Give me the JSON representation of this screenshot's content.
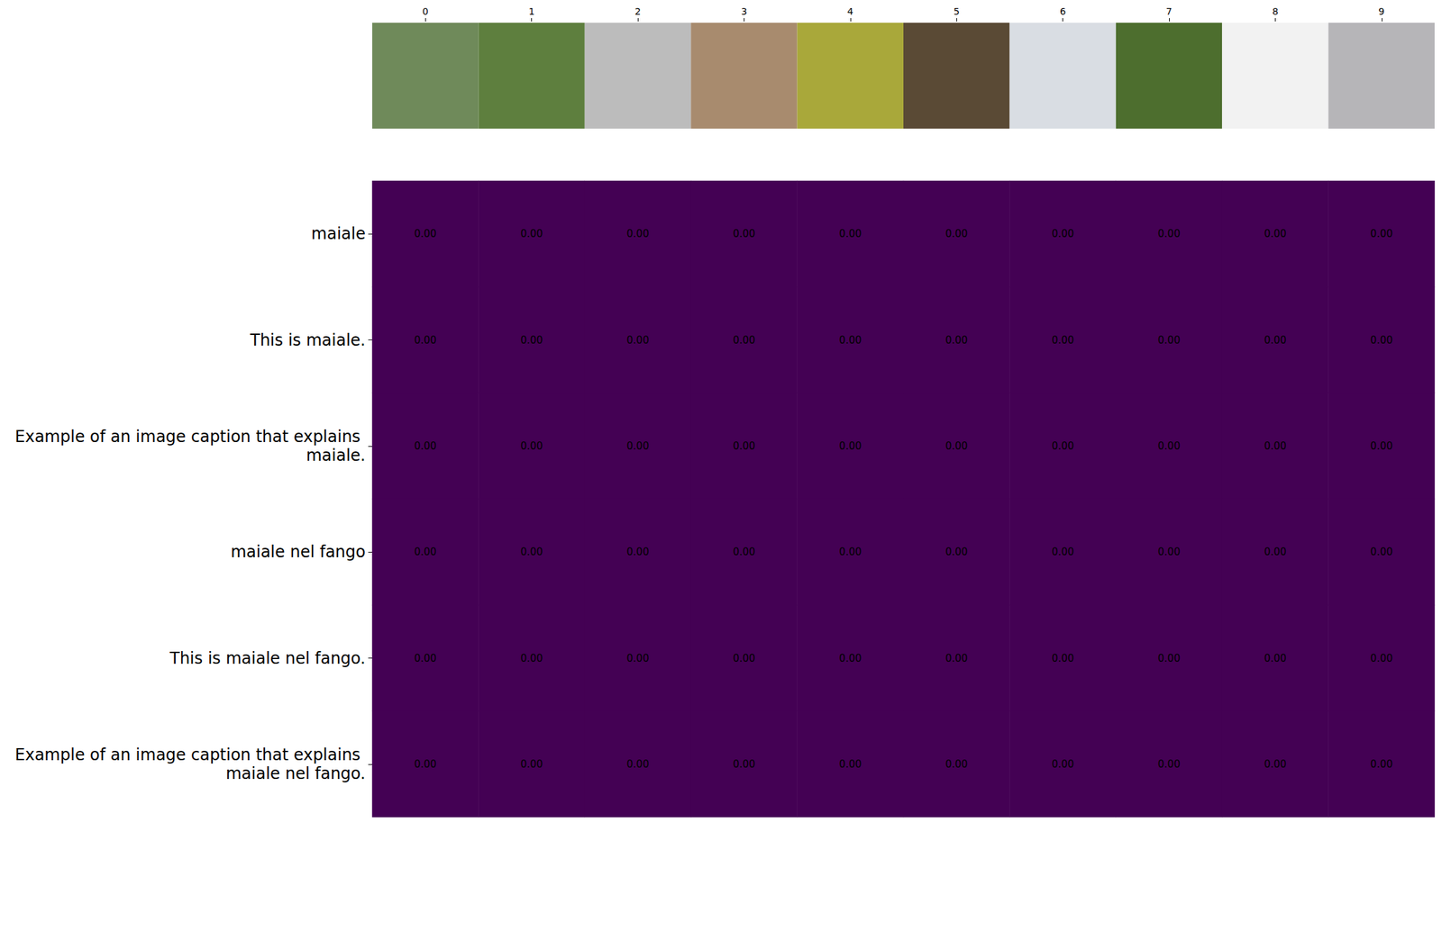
{
  "chart_data": {
    "type": "heatmap",
    "x": [
      0,
      1,
      2,
      3,
      4,
      5,
      6,
      7,
      8,
      9
    ],
    "y": [
      "maiale",
      "This is maiale.",
      "Example of an image caption that explains maiale.",
      "maiale nel fango",
      "This is maiale nel fango.",
      "Example of an image caption that explains maiale nel fango."
    ],
    "values": [
      [
        0,
        0,
        0,
        0,
        0,
        0,
        0,
        0,
        0,
        0
      ],
      [
        0,
        0,
        0,
        0,
        0,
        0,
        0,
        0,
        0,
        0
      ],
      [
        0,
        0,
        0,
        0,
        0,
        0,
        0,
        0,
        0,
        0
      ],
      [
        0,
        0,
        0,
        0,
        0,
        0,
        0,
        0,
        0,
        0
      ],
      [
        0,
        0,
        0,
        0,
        0,
        0,
        0,
        0,
        0,
        0
      ],
      [
        0,
        0,
        0,
        0,
        0,
        0,
        0,
        0,
        0,
        0
      ]
    ],
    "value_labels": [
      [
        "0.00",
        "0.00",
        "0.00",
        "0.00",
        "0.00",
        "0.00",
        "0.00",
        "0.00",
        "0.00",
        "0.00"
      ],
      [
        "0.00",
        "0.00",
        "0.00",
        "0.00",
        "0.00",
        "0.00",
        "0.00",
        "0.00",
        "0.00",
        "0.00"
      ],
      [
        "0.00",
        "0.00",
        "0.00",
        "0.00",
        "0.00",
        "0.00",
        "0.00",
        "0.00",
        "0.00",
        "0.00"
      ],
      [
        "0.00",
        "0.00",
        "0.00",
        "0.00",
        "0.00",
        "0.00",
        "0.00",
        "0.00",
        "0.00",
        "0.00"
      ],
      [
        "0.00",
        "0.00",
        "0.00",
        "0.00",
        "0.00",
        "0.00",
        "0.00",
        "0.00",
        "0.00",
        "0.00"
      ],
      [
        "0.00",
        "0.00",
        "0.00",
        "0.00",
        "0.00",
        "0.00",
        "0.00",
        "0.00",
        "0.00",
        "0.00"
      ]
    ],
    "color": "#440154",
    "data_labels": true
  }
}
